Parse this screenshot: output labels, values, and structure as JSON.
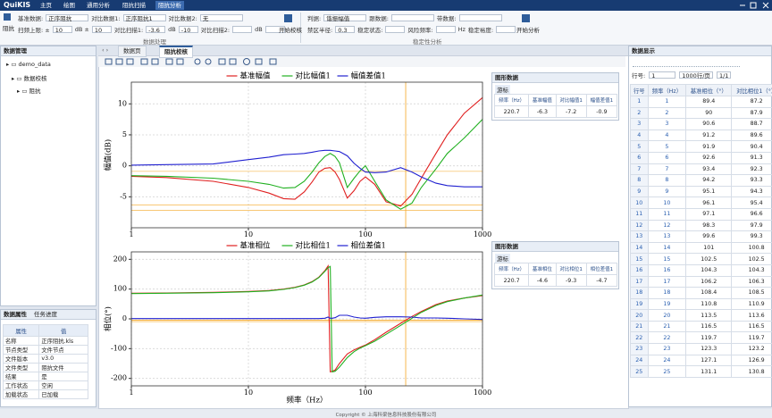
{
  "header": {
    "app": "QuiKIS",
    "menu": [
      "主页",
      "绘图",
      "通用分析",
      "阻抗扫描",
      "阻抗分析"
    ],
    "active": 4
  },
  "ribbon": {
    "data_group": {
      "icon_label": "阻抗",
      "row1": [
        {
          "text": "基准数据:"
        },
        {
          "text": "正序阻抗",
          "box": true
        },
        {
          "text": "对比数据1:"
        },
        {
          "text": "正序阻抗1",
          "box": true
        },
        {
          "text": "对比数据2:"
        },
        {
          "text": "无",
          "box": true
        }
      ],
      "row2": [
        {
          "text": "扫频上限: ±"
        },
        {
          "text": "10",
          "box": true
        },
        {
          "text": "dB ±"
        },
        {
          "text": "10",
          "box": true
        },
        {
          "text": "对比扫描1:"
        },
        {
          "text": "-3.6",
          "box": true
        },
        {
          "text": "dB"
        },
        {
          "text": "-10",
          "box": true
        },
        {
          "text": "对比扫描2:"
        },
        {
          "box": true
        },
        {
          "text": "dB"
        },
        {
          "box": true
        }
      ],
      "button": "开始校核",
      "group_label": "数据处理"
    },
    "analysis_group": {
      "row1": [
        {
          "text": "判据:"
        },
        {
          "text": "谐振幅值",
          "box": true
        },
        {
          "text": "跟数据:"
        },
        {
          "box": true
        },
        {
          "text": "带数据:"
        },
        {
          "box": true
        }
      ],
      "row2": [
        {
          "text": "禁区半径:"
        },
        {
          "text": "0.3",
          "box": true
        },
        {
          "text": "稳定状态:"
        },
        {
          "box": true
        },
        {
          "text": "风险频率:"
        },
        {
          "box": true
        },
        {
          "text": "Hz"
        },
        {
          "text": "稳定裕度:"
        },
        {
          "box": true
        }
      ],
      "button": "开始分析",
      "group_label": "稳定性分析"
    }
  },
  "left_panel": {
    "title": "数据管理",
    "tree": [
      "demo_data",
      "数据校核",
      "阻抗"
    ],
    "tabs": [
      "数据属性",
      "任务进度"
    ],
    "headers": [
      "属性",
      "值"
    ],
    "rows": [
      [
        "名称",
        "正序阻抗.kls"
      ],
      [
        "节点类型",
        "文件节点"
      ],
      [
        "文件版本",
        "v3.0"
      ],
      [
        "文件类型",
        "阻抗文件"
      ],
      [
        "结果",
        "是"
      ],
      [
        "工作状态",
        "空闲"
      ],
      [
        "加载状态",
        "已加载"
      ]
    ]
  },
  "tabs": {
    "items": [
      "数据页",
      "阻抗校核"
    ],
    "active": 1
  },
  "graph_panels": [
    {
      "title": "图形数据",
      "cursor": "游标",
      "headers": [
        "频率（Hz）",
        "基准幅值",
        "对比幅值1",
        "幅值差值1"
      ],
      "row": [
        220.7,
        -6.3,
        -7.2,
        -0.9
      ]
    },
    {
      "title": "图形数据",
      "cursor": "游标",
      "headers": [
        "频率（Hz）",
        "基准相位",
        "对比相位1",
        "相位差值1"
      ],
      "row": [
        220.7,
        -4.6,
        -9.3,
        -4.7
      ]
    }
  ],
  "chart_data": [
    {
      "type": "line",
      "y_label": "幅值(dB)",
      "x_scale": "log",
      "xlim": [
        1,
        1000
      ],
      "xticks": [
        1,
        10,
        100,
        1000
      ],
      "ylim": [
        -10,
        13.5
      ],
      "yticks": [
        -5,
        0,
        5,
        10
      ],
      "grid": true,
      "legend": "top",
      "x": [
        1,
        2,
        5,
        10,
        15,
        20,
        25,
        30,
        35,
        40,
        45,
        50,
        55,
        60,
        70,
        80,
        90,
        100,
        120,
        150,
        200,
        250,
        300,
        400,
        500,
        700,
        1000
      ],
      "series": [
        {
          "name": "基准幅值",
          "color": "#e02020",
          "values": [
            -1.7,
            -1.9,
            -2.5,
            -3.5,
            -4.4,
            -5.3,
            -5.4,
            -4.2,
            -2.6,
            -1.0,
            -0.4,
            -0.3,
            -1.0,
            -2.2,
            -5.2,
            -4.0,
            -2.5,
            -1.8,
            -3.0,
            -5.8,
            -6.5,
            -4.6,
            -2.0,
            2.0,
            5.0,
            8.5,
            11.0
          ]
        },
        {
          "name": "对比幅值1",
          "color": "#20b020",
          "values": [
            -1.6,
            -1.7,
            -2.0,
            -2.5,
            -3.0,
            -3.6,
            -3.5,
            -2.5,
            -1.0,
            0.5,
            1.5,
            2.0,
            1.5,
            0.5,
            -3.5,
            -2.0,
            -0.8,
            0.0,
            -2.5,
            -5.5,
            -7.0,
            -6.0,
            -3.5,
            -0.5,
            2.0,
            4.5,
            7.5
          ]
        },
        {
          "name": "幅值差值1",
          "color": "#2020d0",
          "values": [
            0.1,
            0.2,
            0.3,
            1.0,
            1.4,
            1.8,
            1.9,
            2.0,
            2.2,
            2.4,
            2.5,
            2.5,
            2.4,
            2.3,
            1.6,
            0.4,
            -0.4,
            -1.0,
            -1.1,
            -1.0,
            -0.3,
            -1.0,
            -1.8,
            -2.8,
            -3.2,
            -3.4,
            -3.4
          ]
        }
      ]
    },
    {
      "type": "line",
      "y_label": "相位(°)",
      "x_label": "频率（Hz）",
      "x_scale": "log",
      "xlim": [
        1,
        1000
      ],
      "xticks": [
        1,
        10,
        100,
        1000
      ],
      "ylim": [
        -225,
        225
      ],
      "yticks": [
        -200,
        -100,
        0,
        100,
        200
      ],
      "grid": true,
      "legend": "top",
      "x": [
        1,
        2,
        5,
        10,
        15,
        20,
        25,
        30,
        35,
        40,
        45,
        48,
        50,
        52,
        55,
        60,
        70,
        80,
        90,
        100,
        120,
        150,
        200,
        250,
        300,
        400,
        500,
        700,
        1000
      ],
      "series": [
        {
          "name": "基准相位",
          "color": "#e02020",
          "values": [
            86,
            87,
            89,
            92,
            95,
            100,
            106,
            114,
            125,
            140,
            162,
            178,
            -178,
            -176,
            -172,
            -150,
            -118,
            -104,
            -95,
            -88,
            -70,
            -45,
            -15,
            8,
            25,
            48,
            60,
            70,
            78
          ]
        },
        {
          "name": "对比相位1",
          "color": "#20b020",
          "values": [
            85,
            86,
            88,
            91,
            94,
            99,
            105,
            113,
            124,
            139,
            160,
            172,
            176,
            -178,
            -176,
            -162,
            -130,
            -110,
            -98,
            -90,
            -75,
            -52,
            -22,
            2,
            22,
            45,
            58,
            70,
            80
          ]
        },
        {
          "name": "相位差值1",
          "color": "#2020d0",
          "values": [
            1,
            1,
            1,
            1,
            1,
            1,
            1,
            1,
            1,
            1,
            2,
            6,
            2,
            2,
            4,
            12,
            12,
            6,
            3,
            2,
            5,
            7,
            7,
            6,
            3,
            3,
            2,
            0,
            -2
          ]
        }
      ]
    }
  ],
  "data_display": {
    "title": "数据显示",
    "row_label": "行号:",
    "row_value": 1,
    "per_page": "1000行/页",
    "page": "1/1",
    "headers": [
      "行号",
      "频率（Hz）",
      "基准相位（°）",
      "对比相位1（°）"
    ],
    "rows": [
      [
        1,
        1,
        89.4,
        87.2
      ],
      [
        2,
        2,
        90,
        87.9
      ],
      [
        3,
        3,
        90.6,
        88.7
      ],
      [
        4,
        4,
        91.2,
        89.6
      ],
      [
        5,
        5,
        91.9,
        90.4
      ],
      [
        6,
        6,
        92.6,
        91.3
      ],
      [
        7,
        7,
        93.4,
        92.3
      ],
      [
        8,
        8,
        94.2,
        93.3
      ],
      [
        9,
        9,
        95.1,
        94.3
      ],
      [
        10,
        10,
        96.1,
        95.4
      ],
      [
        11,
        11,
        97.1,
        96.6
      ],
      [
        12,
        12,
        98.3,
        97.9
      ],
      [
        13,
        13,
        99.6,
        99.3
      ],
      [
        14,
        14,
        101,
        100.8
      ],
      [
        15,
        15,
        102.5,
        102.5
      ],
      [
        16,
        16,
        104.3,
        104.3
      ],
      [
        17,
        17,
        106.2,
        106.3
      ],
      [
        18,
        18,
        108.4,
        108.5
      ],
      [
        19,
        19,
        110.8,
        110.9
      ],
      [
        20,
        20,
        113.5,
        113.6
      ],
      [
        21,
        21,
        116.5,
        116.5
      ],
      [
        22,
        22,
        119.7,
        119.7
      ],
      [
        23,
        23,
        123.3,
        123.2
      ],
      [
        24,
        24,
        127.1,
        126.9
      ],
      [
        25,
        25,
        131.1,
        130.8
      ]
    ]
  },
  "footer": "Copyright © 上海科梁信息科技股份有限公司"
}
